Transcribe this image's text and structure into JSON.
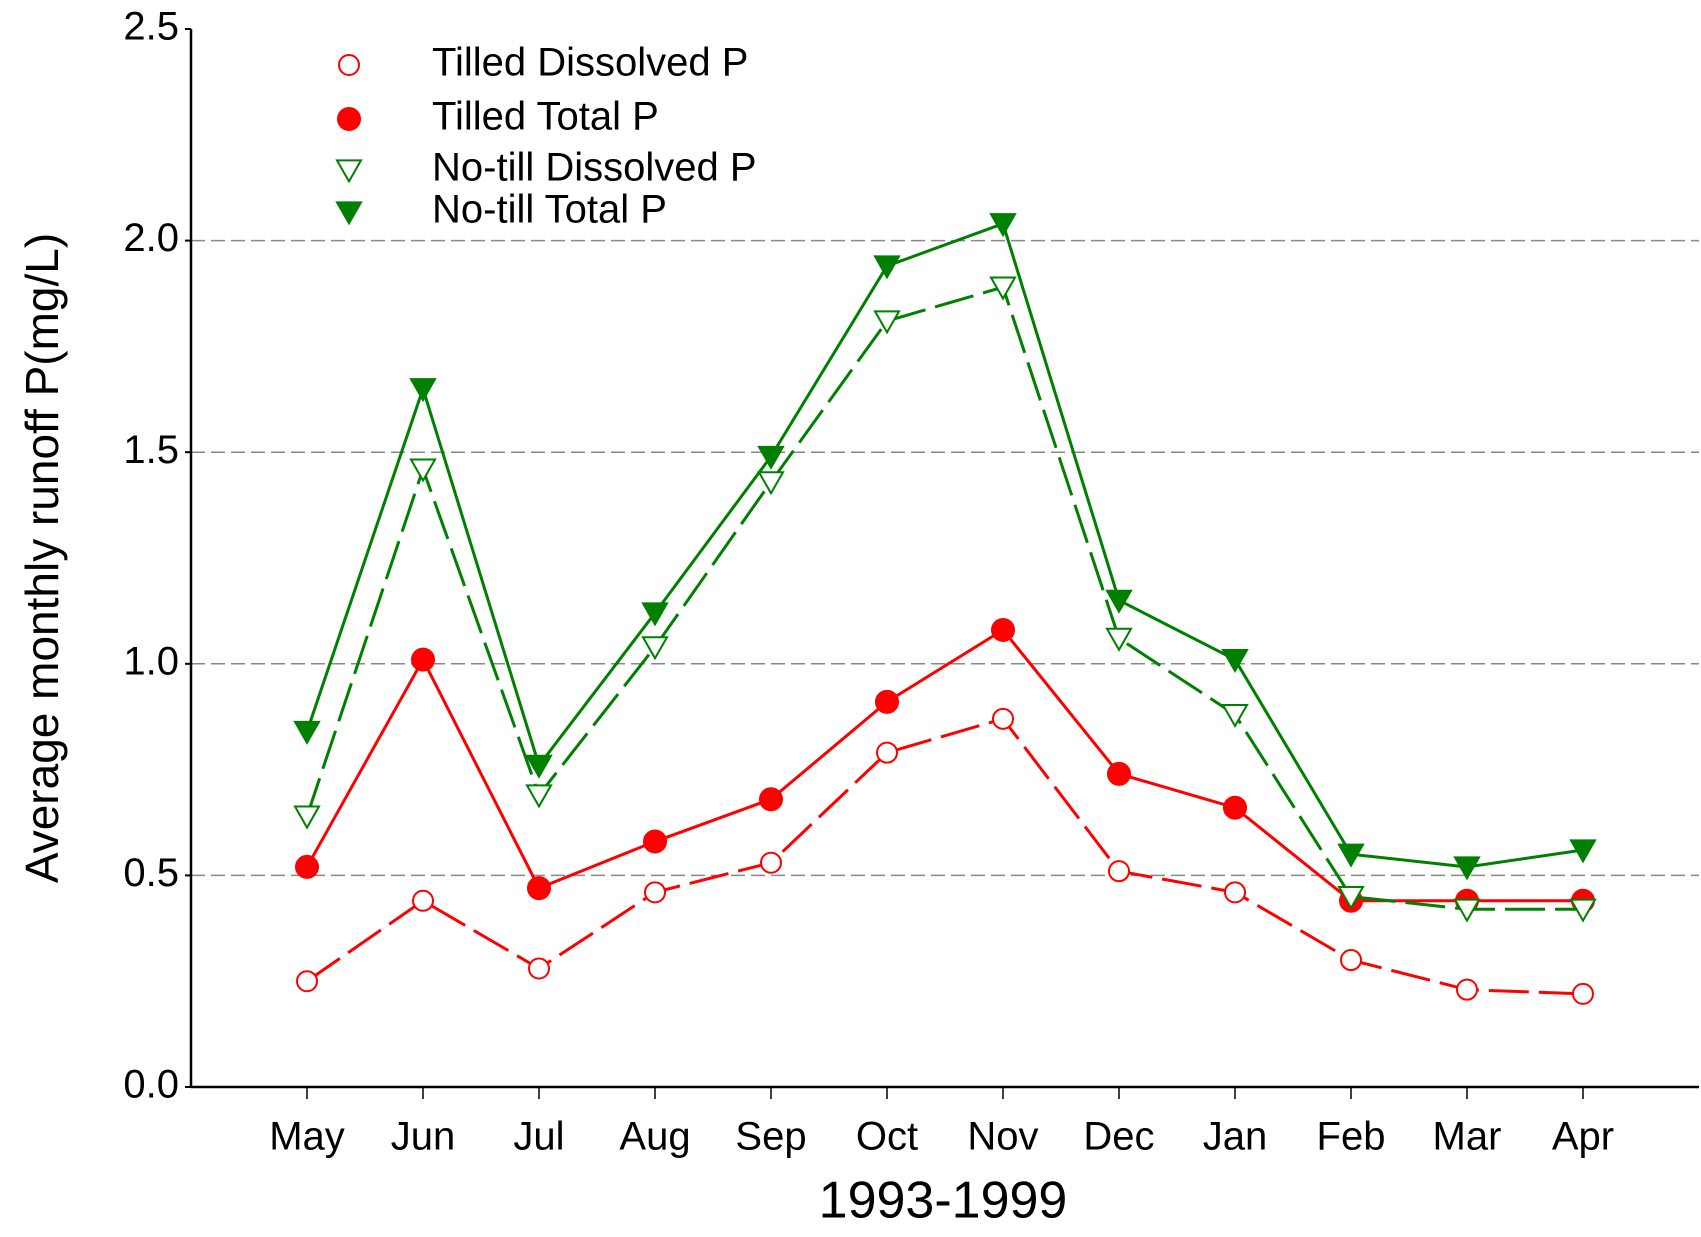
{
  "chart_data": {
    "type": "line",
    "xlabel": "1993-1999",
    "ylabel": "Average monthly runoff P(mg/L)",
    "categories": [
      "May",
      "Jun",
      "Jul",
      "Aug",
      "Sep",
      "Oct",
      "Nov",
      "Dec",
      "Jan",
      "Feb",
      "Mar",
      "Apr"
    ],
    "ylim": [
      0,
      2.5
    ],
    "yticks": [
      {
        "value": 0,
        "label": "0.0"
      },
      0.5,
      {
        "value": 1,
        "label": "1.0"
      },
      1.5,
      {
        "value": 2,
        "label": "2.0"
      },
      2.5
    ],
    "grid": true,
    "legend": "upper left",
    "series": [
      {
        "name": "Tilled Dissolved P",
        "color": "#ff0000",
        "marker": "open-circle",
        "line": "dashed",
        "values": [
          0.25,
          0.44,
          0.28,
          0.46,
          0.53,
          0.79,
          0.87,
          0.51,
          0.46,
          0.3,
          0.23,
          0.22
        ]
      },
      {
        "name": "Tilled Total P",
        "color": "#ff0000",
        "marker": "filled-circle",
        "line": "solid",
        "values": [
          0.52,
          1.01,
          0.47,
          0.58,
          0.68,
          0.91,
          1.08,
          0.74,
          0.66,
          0.44,
          0.44,
          0.44
        ]
      },
      {
        "name": "No-till Dissolved P",
        "color": "#008000",
        "marker": "open-triangle-down",
        "line": "dashed",
        "values": [
          0.64,
          1.46,
          0.69,
          1.04,
          1.43,
          1.81,
          1.89,
          1.06,
          0.88,
          0.45,
          0.42,
          0.42
        ]
      },
      {
        "name": "No-till Total P",
        "color": "#008000",
        "marker": "filled-triangle-down",
        "line": "solid",
        "values": [
          0.84,
          1.65,
          0.76,
          1.12,
          1.49,
          1.94,
          2.04,
          1.15,
          1.01,
          0.55,
          0.52,
          0.56
        ]
      }
    ]
  }
}
